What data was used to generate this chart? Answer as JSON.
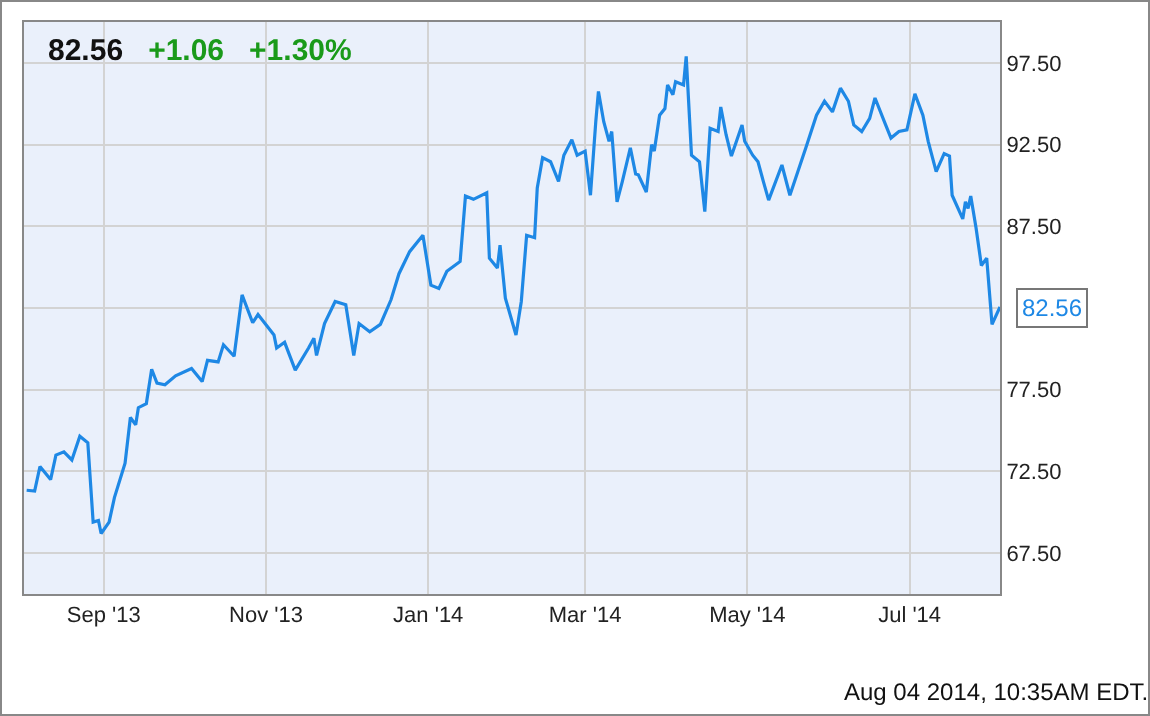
{
  "chart_data": {
    "type": "line",
    "title": "82.56",
    "x": [
      "2013-08-03",
      "2013-08-06",
      "2013-08-08",
      "2013-08-12",
      "2013-08-14",
      "2013-08-17",
      "2013-08-20",
      "2013-08-23",
      "2013-08-26",
      "2013-08-28",
      "2013-08-30",
      "2013-08-31",
      "2013-09-03",
      "2013-09-05",
      "2013-09-09",
      "2013-09-11",
      "2013-09-13",
      "2013-09-14",
      "2013-09-17",
      "2013-09-19",
      "2013-09-21",
      "2013-09-24",
      "2013-09-28",
      "2013-10-04",
      "2013-10-08",
      "2013-10-10",
      "2013-10-14",
      "2013-10-16",
      "2013-10-20",
      "2013-10-23",
      "2013-10-27",
      "2013-10-29",
      "2013-11-04",
      "2013-11-05",
      "2013-11-08",
      "2013-11-12",
      "2013-11-17",
      "2013-11-19",
      "2013-11-20",
      "2013-11-23",
      "2013-11-27",
      "2013-12-01",
      "2013-12-04",
      "2013-12-06",
      "2013-12-10",
      "2013-12-14",
      "2013-12-18",
      "2013-12-21",
      "2013-12-25",
      "2013-12-30",
      "2014-01-02",
      "2014-01-05",
      "2014-01-08",
      "2014-01-13",
      "2014-01-15",
      "2014-01-18",
      "2014-01-23",
      "2014-01-24",
      "2014-01-27",
      "2014-01-28",
      "2014-01-30",
      "2014-02-03",
      "2014-02-05",
      "2014-02-07",
      "2014-02-10",
      "2014-02-11",
      "2014-02-13",
      "2014-02-16",
      "2014-02-19",
      "2014-02-21",
      "2014-02-24",
      "2014-02-26",
      "2014-03-01",
      "2014-03-03",
      "2014-03-05",
      "2014-03-06",
      "2014-03-08",
      "2014-03-10",
      "2014-03-11",
      "2014-03-13",
      "2014-03-15",
      "2014-03-18",
      "2014-03-20",
      "2014-03-21",
      "2014-03-24",
      "2014-03-26",
      "2014-03-27",
      "2014-03-29",
      "2014-03-31",
      "2014-04-01",
      "2014-04-03",
      "2014-04-04",
      "2014-04-07",
      "2014-04-08",
      "2014-04-10",
      "2014-04-13",
      "2014-04-15",
      "2014-04-17",
      "2014-04-20",
      "2014-04-21",
      "2014-04-23",
      "2014-04-25",
      "2014-04-29",
      "2014-04-30",
      "2014-05-03",
      "2014-05-05",
      "2014-05-07",
      "2014-05-09",
      "2014-05-14",
      "2014-05-17",
      "2014-05-20",
      "2014-05-23",
      "2014-05-27",
      "2014-05-30",
      "2014-06-02",
      "2014-06-05",
      "2014-06-08",
      "2014-06-10",
      "2014-06-13",
      "2014-06-16",
      "2014-06-18",
      "2014-06-22",
      "2014-06-24",
      "2014-06-27",
      "2014-06-30",
      "2014-07-03",
      "2014-07-06",
      "2014-07-08",
      "2014-07-11",
      "2014-07-14",
      "2014-07-16",
      "2014-07-17",
      "2014-07-21",
      "2014-07-22",
      "2014-07-23",
      "2014-07-24",
      "2014-07-26",
      "2014-07-28",
      "2014-07-30",
      "2014-08-01",
      "2014-08-04"
    ],
    "series": [
      {
        "color": "#1e88e5",
        "values": [
          71.35,
          71.3,
          72.8,
          72.0,
          73.5,
          73.7,
          73.2,
          74.65,
          74.25,
          69.4,
          69.5,
          68.7,
          69.4,
          70.9,
          73.0,
          75.8,
          75.35,
          76.4,
          76.65,
          78.75,
          77.9,
          77.8,
          78.35,
          78.8,
          78.0,
          79.3,
          79.2,
          80.25,
          79.55,
          83.3,
          81.6,
          82.1,
          80.85,
          80.05,
          80.4,
          78.7,
          80.05,
          80.65,
          79.6,
          81.55,
          82.9,
          82.7,
          79.6,
          81.55,
          81.05,
          81.5,
          83.0,
          84.6,
          85.95,
          86.95,
          83.9,
          83.7,
          84.75,
          85.35,
          89.35,
          89.15,
          89.55,
          85.55,
          84.95,
          86.35,
          83.1,
          80.85,
          82.9,
          86.95,
          86.8,
          89.85,
          91.7,
          91.45,
          90.25,
          91.85,
          92.8,
          91.85,
          92.1,
          89.4,
          93.9,
          95.75,
          93.9,
          92.7,
          93.3,
          89.0,
          90.25,
          92.3,
          90.7,
          90.65,
          89.6,
          92.5,
          92.1,
          94.3,
          94.7,
          96.15,
          95.55,
          96.35,
          96.15,
          97.9,
          91.85,
          91.45,
          88.4,
          93.5,
          93.3,
          94.8,
          93.1,
          91.8,
          93.7,
          92.7,
          91.85,
          91.45,
          90.25,
          89.1,
          91.25,
          89.4,
          90.85,
          92.3,
          94.3,
          95.15,
          94.5,
          95.95,
          95.15,
          93.7,
          93.3,
          94.1,
          95.35,
          93.7,
          92.9,
          93.3,
          93.4,
          95.6,
          94.3,
          92.7,
          90.85,
          91.95,
          91.8,
          89.4,
          87.95,
          89.0,
          88.6,
          89.35,
          87.4,
          85.1,
          85.55,
          81.5,
          82.56
        ]
      }
    ],
    "xlim": [
      "2013-08-02",
      "2014-08-04"
    ],
    "xticks": [
      {
        "value": "2013-09-01",
        "label": "Sep '13"
      },
      {
        "value": "2013-11-01",
        "label": "Nov '13"
      },
      {
        "value": "2014-01-01",
        "label": "Jan '14"
      },
      {
        "value": "2014-03-01",
        "label": "Mar '14"
      },
      {
        "value": "2014-05-01",
        "label": "May '14"
      },
      {
        "value": "2014-07-01",
        "label": "Jul '14"
      }
    ],
    "ylim": [
      65,
      100
    ],
    "yticks": [
      {
        "value": 67.5,
        "label": "67.50"
      },
      {
        "value": 72.5,
        "label": "72.50"
      },
      {
        "value": 77.5,
        "label": "77.50"
      },
      {
        "value": 82.5,
        "label": null
      },
      {
        "value": 87.5,
        "label": "87.50"
      },
      {
        "value": 92.5,
        "label": "92.50"
      },
      {
        "value": 97.5,
        "label": "97.50"
      }
    ],
    "grid": true,
    "annotations": [
      "+1.06",
      "+1.30%",
      {
        "text": "82.56",
        "x": "2014-08-04",
        "y": 82.56
      },
      "Aug 04 2014, 10:35AM EDT."
    ]
  }
}
